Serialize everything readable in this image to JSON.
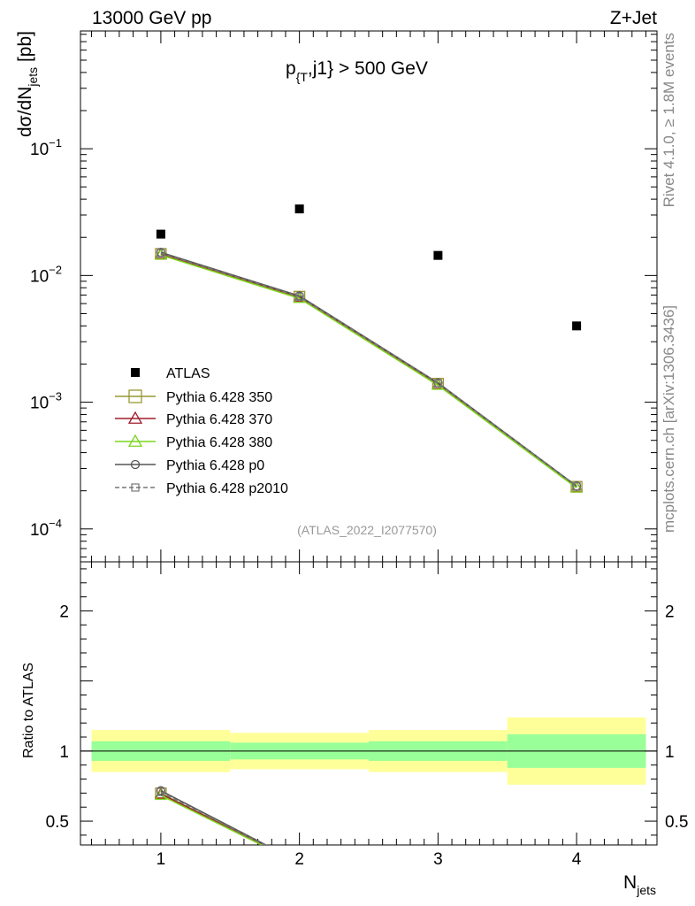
{
  "header": {
    "left": "13000 GeV pp",
    "right": "Z+Jet"
  },
  "side_labels": {
    "rivet": "Rivet 4.1.0, ≥ 1.8M events",
    "mcplots": "mcplots.cern.ch [arXiv:1306.3436]"
  },
  "chart_data": {
    "type": "scatter",
    "title_main": "p",
    "title_sub": "{T",
    "title_rest": ",j1} > 500 GeV",
    "reference": "(ATLAS_2022_I2077570)",
    "xlabel_main": "N",
    "xlabel_sub": "jets",
    "ylabel_main": "dσ/dN",
    "ylabel_sub": "jets",
    "ylabel_unit": " [pb]",
    "ratio_ylabel": "Ratio to ATLAS",
    "x": [
      1,
      2,
      3,
      4
    ],
    "xlim": [
      0.42,
      4.58
    ],
    "xticks": [
      "1",
      "2",
      "3",
      "4"
    ],
    "main_ylim": [
      5.5e-05,
      0.85
    ],
    "main_yscale": "log",
    "main_yticks": [
      {
        "label": "10",
        "exp": "−4"
      },
      {
        "label": "10",
        "exp": "−3"
      },
      {
        "label": "10",
        "exp": "−2"
      },
      {
        "label": "10",
        "exp": "−1"
      }
    ],
    "ratio_ylim": [
      0.33,
      2.35
    ],
    "ratio_yticks": [
      "0.5",
      "1",
      "2"
    ],
    "atlas": {
      "name": "ATLAS",
      "values": [
        0.0212,
        0.0335,
        0.0144,
        0.004
      ],
      "band_inner": [
        0.07,
        0.06,
        0.07,
        0.12
      ],
      "band_outer": [
        0.15,
        0.13,
        0.15,
        0.24
      ]
    },
    "series": [
      {
        "name": "Pythia 6.428 350",
        "color": "#999933",
        "marker": "square",
        "dash": "",
        "values": [
          0.0148,
          0.0068,
          0.0014,
          0.000215
        ]
      },
      {
        "name": "Pythia 6.428 370",
        "color": "#a01d2b",
        "marker": "triangle",
        "dash": "",
        "values": [
          0.0147,
          0.0067,
          0.00138,
          0.000213
        ]
      },
      {
        "name": "Pythia 6.428 380",
        "color": "#7bd51b",
        "marker": "triangle",
        "dash": "",
        "values": [
          0.0145,
          0.0066,
          0.00136,
          0.000211
        ]
      },
      {
        "name": "Pythia 6.428 p0",
        "color": "#555555",
        "marker": "circle",
        "dash": "",
        "values": [
          0.0152,
          0.0069,
          0.00142,
          0.000218
        ]
      },
      {
        "name": "Pythia 6.428 p2010",
        "color": "#777777",
        "marker": "smallsquare",
        "dash": "5,3",
        "values": [
          0.015,
          0.0068,
          0.00141,
          0.000217
        ]
      }
    ]
  }
}
